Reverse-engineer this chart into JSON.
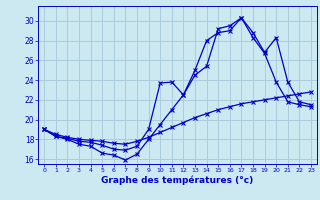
{
  "title": "Graphe des températures (°c)",
  "bg_color": "#cce8f0",
  "grid_color": "#aaccdd",
  "line_color": "#0000cc",
  "ylim": [
    15.5,
    31.5
  ],
  "xlim": [
    -0.5,
    23.5
  ],
  "yticks": [
    16,
    18,
    20,
    22,
    24,
    26,
    28,
    30
  ],
  "xticks": [
    0,
    1,
    2,
    3,
    4,
    5,
    6,
    7,
    8,
    9,
    10,
    11,
    12,
    13,
    14,
    15,
    16,
    17,
    18,
    19,
    20,
    21,
    22,
    23
  ],
  "series": [
    [
      19.0,
      18.3,
      18.0,
      17.5,
      17.3,
      16.6,
      16.4,
      15.9,
      16.5,
      18.0,
      19.5,
      21.0,
      22.5,
      25.0,
      28.0,
      28.8,
      29.0,
      30.3,
      28.8,
      26.8,
      28.3,
      23.8,
      21.8,
      21.5
    ],
    [
      19.0,
      18.5,
      18.2,
      18.0,
      17.9,
      17.8,
      17.6,
      17.5,
      17.8,
      18.2,
      18.7,
      19.2,
      19.7,
      20.2,
      20.6,
      21.0,
      21.3,
      21.6,
      21.8,
      22.0,
      22.2,
      22.4,
      22.6,
      22.8
    ],
    [
      19.0,
      18.3,
      18.1,
      17.8,
      17.7,
      17.4,
      17.0,
      16.9,
      17.3,
      19.0,
      23.7,
      23.8,
      22.5,
      24.5,
      25.4,
      29.2,
      29.5,
      30.3,
      28.3,
      26.7,
      23.8,
      21.8,
      21.5,
      21.3
    ]
  ]
}
